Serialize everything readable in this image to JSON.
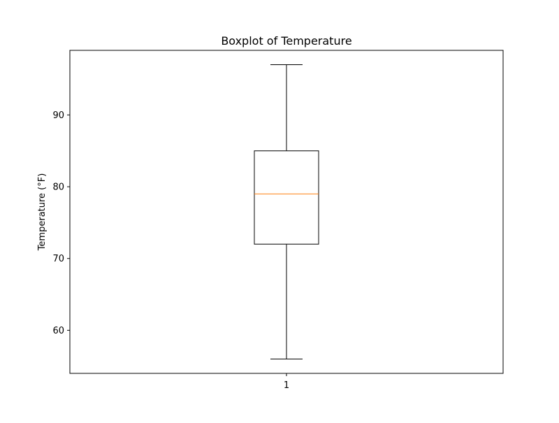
{
  "chart_data": {
    "type": "boxplot",
    "title": "Boxplot of Temperature",
    "xlabel": "",
    "ylabel": "Temperature (°F)",
    "categories": [
      "1"
    ],
    "boxes": [
      {
        "category": "1",
        "whisker_low": 56,
        "q1": 72,
        "median": 79,
        "q3": 85,
        "whisker_high": 97
      }
    ],
    "yticks": [
      60,
      70,
      80,
      90
    ],
    "ylim": [
      54,
      99
    ],
    "grid": false,
    "colors": {
      "box": "#000000",
      "median": "#ff7f0e",
      "axes": "#000000"
    }
  }
}
